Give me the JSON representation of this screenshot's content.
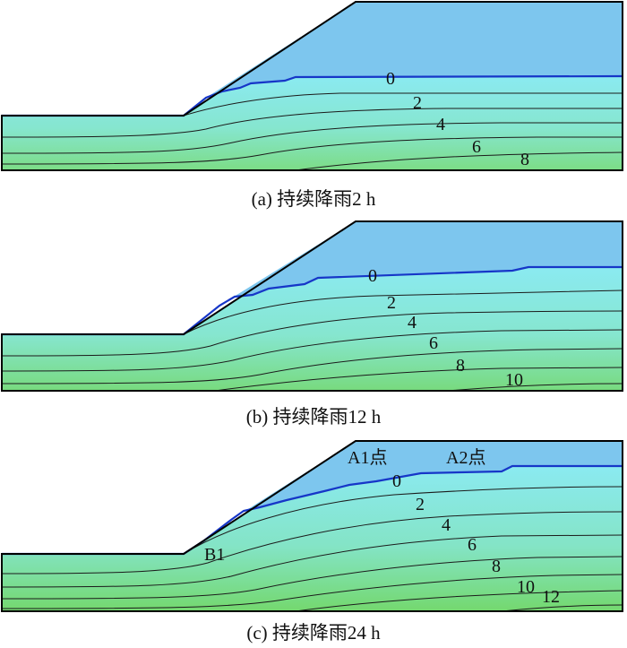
{
  "panels": [
    {
      "id": "a",
      "caption": "(a) 持续降雨2 h",
      "contour_labels": [
        "0",
        "2",
        "4",
        "6",
        "8"
      ]
    },
    {
      "id": "b",
      "caption": "(b) 持续降雨12 h",
      "contour_labels": [
        "0",
        "2",
        "4",
        "6",
        "8",
        "10"
      ]
    },
    {
      "id": "c",
      "caption": "(c) 持续降雨24 h",
      "contour_labels": [
        "0",
        "2",
        "4",
        "6",
        "8",
        "10",
        "12"
      ],
      "point_labels": [
        "A1点",
        "A2点",
        "B1"
      ]
    }
  ],
  "colors": {
    "unsaturated": "#7dc6ee",
    "phreatic_line": "#1636c8",
    "contour": "#1b1b1b",
    "fill_top": "#8ae8ee",
    "fill_bottom": "#7cdc8a"
  }
}
